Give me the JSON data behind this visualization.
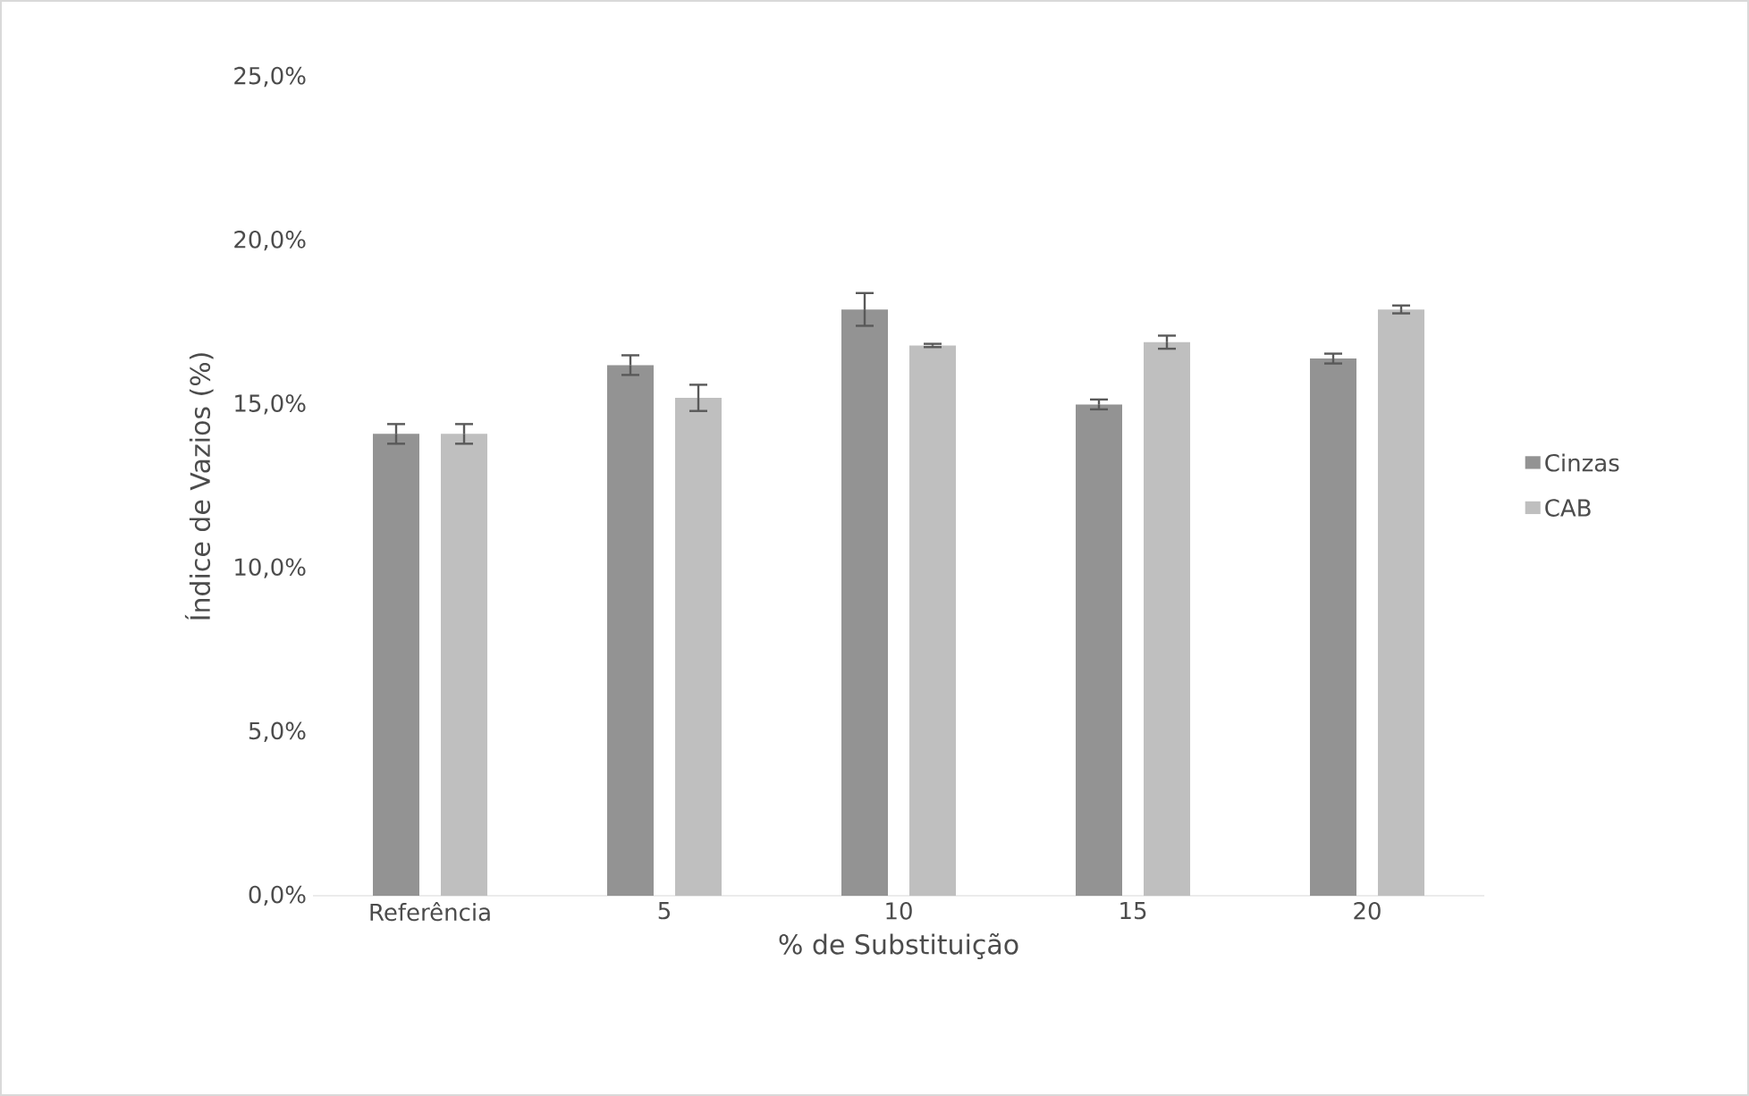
{
  "chart_data": {
    "type": "bar",
    "xlabel": "% de Substituição",
    "ylabel": "Índice de Vazios (%)",
    "categories": [
      "Referência",
      "5",
      "10",
      "15",
      "20"
    ],
    "series": [
      {
        "name": "Cinzas",
        "color": "#939393",
        "values": [
          14.1,
          16.2,
          17.9,
          15.0,
          16.4
        ],
        "errors": [
          0.3,
          0.3,
          0.5,
          0.15,
          0.15
        ]
      },
      {
        "name": "CAB",
        "color": "#bfbfbf",
        "values": [
          14.1,
          15.2,
          16.8,
          16.9,
          17.9
        ],
        "errors": [
          0.3,
          0.4,
          0.05,
          0.2,
          0.12
        ]
      }
    ],
    "ylim": [
      0,
      25
    ],
    "yticks": [
      {
        "value": 0,
        "label": "0,0%"
      },
      {
        "value": 5,
        "label": "5,0%"
      },
      {
        "value": 10,
        "label": "10,0%"
      },
      {
        "value": 15,
        "label": "15,0%"
      },
      {
        "value": 20,
        "label": "20,0%"
      },
      {
        "value": 25,
        "label": "25,0%"
      }
    ],
    "legend": "right"
  }
}
